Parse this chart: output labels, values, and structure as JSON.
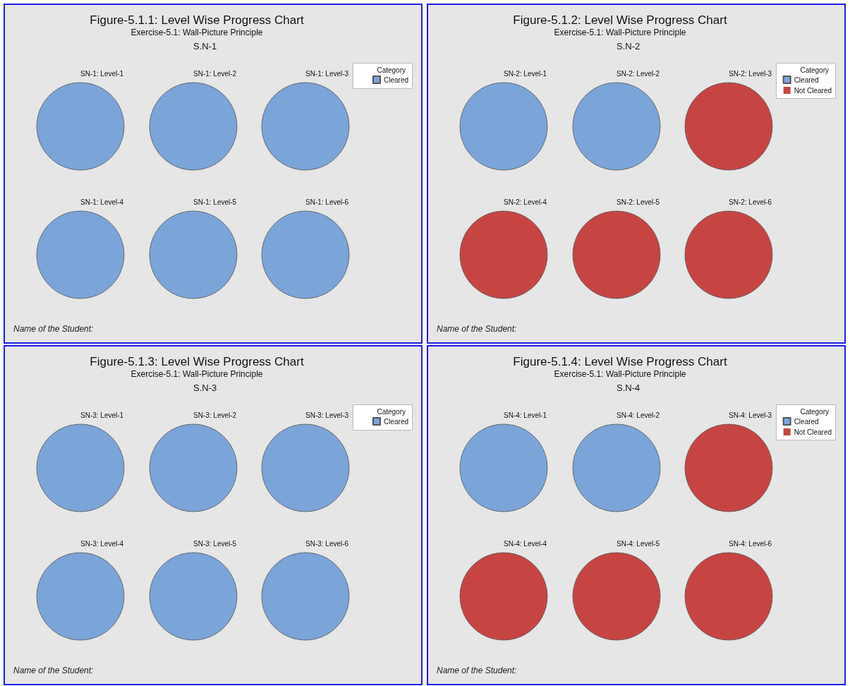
{
  "chart_data": [
    {
      "type": "pie",
      "title": "Figure-5.1.1: Level Wise Progress Chart",
      "subtitle": "Exercise-5.1: Wall-Picture Principle",
      "annotations": [
        "S.N-1",
        "Name of the Student:"
      ],
      "legend": "right",
      "legend_title": "Category",
      "categories": [
        "Cleared"
      ],
      "colors": [
        "#7ba4d8"
      ],
      "series": [
        {
          "name": "SN-1: Level-1",
          "values": [
            100
          ]
        },
        {
          "name": "SN-1: Level-2",
          "values": [
            100
          ]
        },
        {
          "name": "SN-1: Level-3",
          "values": [
            100
          ]
        },
        {
          "name": "SN-1: Level-4",
          "values": [
            100
          ]
        },
        {
          "name": "SN-1: Level-5",
          "values": [
            100
          ]
        },
        {
          "name": "SN-1: Level-6",
          "values": [
            100
          ]
        }
      ]
    },
    {
      "type": "pie",
      "title": "Figure-5.1.2: Level Wise Progress Chart",
      "subtitle": "Exercise-5.1: Wall-Picture Principle",
      "annotations": [
        "S.N-2",
        "Name of the Student:"
      ],
      "legend": "right",
      "legend_title": "Category",
      "categories": [
        "Cleared",
        "Not Cleared"
      ],
      "colors": [
        "#7ba4d8",
        "#c64543"
      ],
      "series": [
        {
          "name": "SN-2: Level-1",
          "values": [
            100,
            0
          ]
        },
        {
          "name": "SN-2: Level-2",
          "values": [
            100,
            0
          ]
        },
        {
          "name": "SN-2: Level-3",
          "values": [
            0,
            100
          ]
        },
        {
          "name": "SN-2: Level-4",
          "values": [
            0,
            100
          ]
        },
        {
          "name": "SN-2: Level-5",
          "values": [
            0,
            100
          ]
        },
        {
          "name": "SN-2: Level-6",
          "values": [
            0,
            100
          ]
        }
      ]
    },
    {
      "type": "pie",
      "title": "Figure-5.1.3: Level Wise Progress Chart",
      "subtitle": "Exercise-5.1: Wall-Picture Principle",
      "annotations": [
        "S.N-3",
        "Name of the Student:"
      ],
      "legend": "right",
      "legend_title": "Category",
      "categories": [
        "Cleared"
      ],
      "colors": [
        "#7ba4d8"
      ],
      "series": [
        {
          "name": "SN-3: Level-1",
          "values": [
            100
          ]
        },
        {
          "name": "SN-3: Level-2",
          "values": [
            100
          ]
        },
        {
          "name": "SN-3: Level-3",
          "values": [
            100
          ]
        },
        {
          "name": "SN-3: Level-4",
          "values": [
            100
          ]
        },
        {
          "name": "SN-3: Level-5",
          "values": [
            100
          ]
        },
        {
          "name": "SN-3: Level-6",
          "values": [
            100
          ]
        }
      ]
    },
    {
      "type": "pie",
      "title": "Figure-5.1.4: Level Wise Progress Chart",
      "subtitle": "Exercise-5.1: Wall-Picture Principle",
      "annotations": [
        "S.N-4",
        "Name of the Student:"
      ],
      "legend": "right",
      "legend_title": "Category",
      "categories": [
        "Cleared",
        "Not Cleared"
      ],
      "colors": [
        "#7ba4d8",
        "#c64543"
      ],
      "series": [
        {
          "name": "SN-4: Level-1",
          "values": [
            100,
            0
          ]
        },
        {
          "name": "SN-4: Level-2",
          "values": [
            100,
            0
          ]
        },
        {
          "name": "SN-4: Level-3",
          "values": [
            0,
            100
          ]
        },
        {
          "name": "SN-4: Level-4",
          "values": [
            0,
            100
          ]
        },
        {
          "name": "SN-4: Level-5",
          "values": [
            0,
            100
          ]
        },
        {
          "name": "SN-4: Level-6",
          "values": [
            0,
            100
          ]
        }
      ]
    }
  ]
}
